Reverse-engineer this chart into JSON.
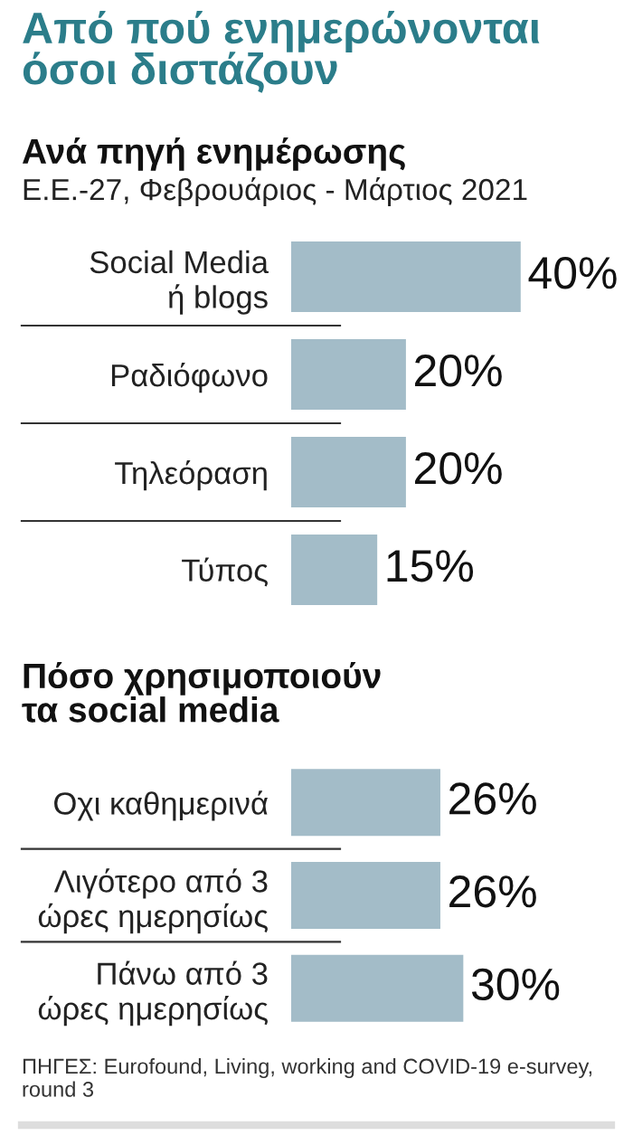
{
  "chart_data": [
    {
      "type": "bar",
      "orientation": "horizontal",
      "title": "Από πού ενημερώνονται\nόσοι διστάζουν",
      "subtitle": "Ανά πηγή ενημέρωσης",
      "annotations": [
        "Ε.Ε.-27, Φεβρουάριος - Μάρτιος 2021"
      ],
      "categories": [
        "Social Media\nή blogs",
        "Ραδιόφωνο",
        "Τηλεόραση",
        "Τύπος"
      ],
      "values": [
        40,
        20,
        20,
        15
      ],
      "color": "#a3bcc8",
      "value_labels": [
        "40%",
        "20%",
        "20%",
        "15%"
      ],
      "tick_labels": "y",
      "grid": false,
      "legend": false
    },
    {
      "type": "bar",
      "orientation": "horizontal",
      "title": "Πόσο χρησιμοποιούν\nτα social media",
      "annotations": [
        "ΠΗΓΕΣ: Eurofound, Living, working and COVID-19 e-survey, round 3"
      ],
      "categories": [
        "Οχι καθημερινά",
        "Λιγότερο από 3\nώρες ημερησίως",
        "Πάνω από 3\nώρες ημερησίως"
      ],
      "values": [
        26,
        26,
        30
      ],
      "color": "#a3bcc8",
      "value_labels": [
        "26%",
        "26%",
        "30%"
      ],
      "tick_labels": "y",
      "grid": false,
      "legend": false
    }
  ]
}
